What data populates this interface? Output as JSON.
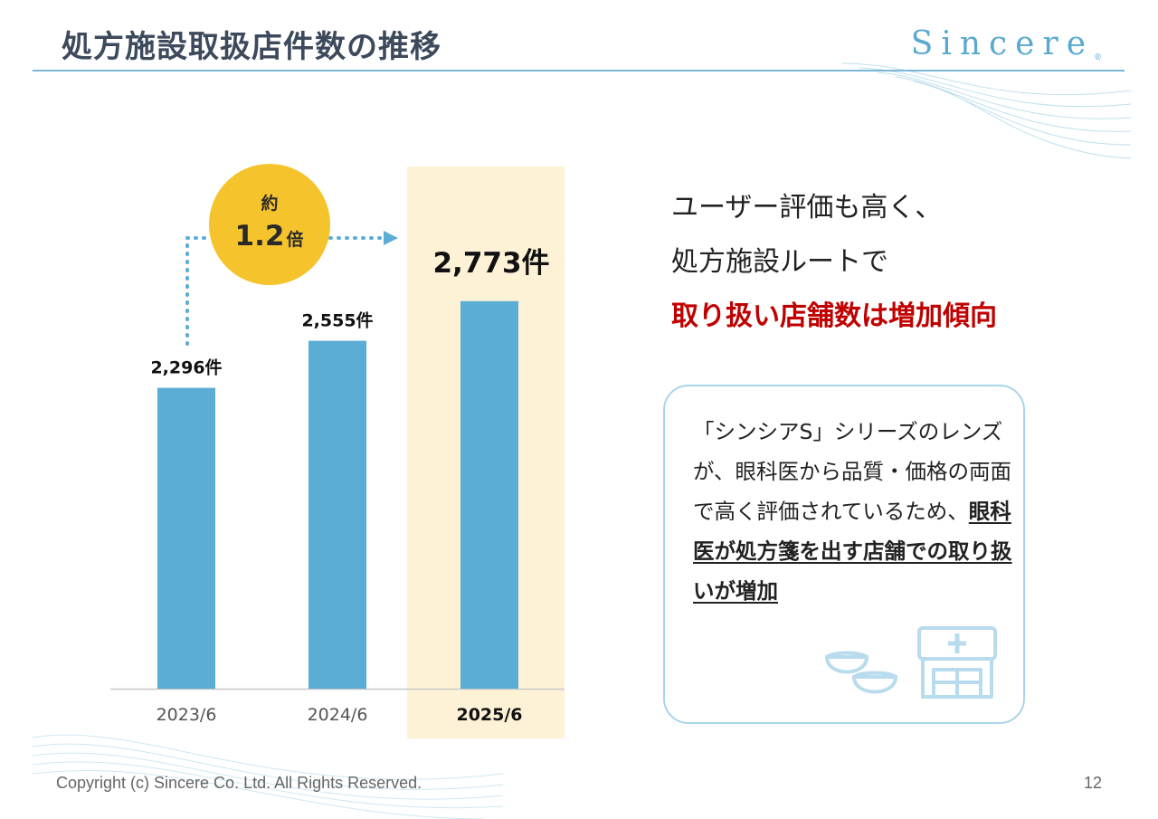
{
  "header": {
    "title": "処方施設取扱店件数の推移",
    "logo_text": "Sincere",
    "logo_mark": "®"
  },
  "chart_data": {
    "type": "bar",
    "categories": [
      "2023/6",
      "2024/6",
      "2025/6"
    ],
    "values": [
      2296,
      2555,
      2773
    ],
    "value_labels": [
      "2,296件",
      "2,555件",
      "2,773件"
    ],
    "highlight_index": 2,
    "growth_badge": {
      "line1": "約",
      "value": "1.2",
      "unit": "倍"
    },
    "colors": {
      "bar": "#5badd6",
      "highlight_bg": "#fdf2d6",
      "badge": "#f5c32c",
      "arrow": "#5badd6"
    }
  },
  "message": {
    "line1": "ユーザー評価も高く、",
    "line2": "処方施設ルートで",
    "line3": "取り扱い店舗数は増加傾向"
  },
  "callout": {
    "text_plain": "「シンシアS」シリーズのレンズが、眼科医から品質・価格の両面で高く評価されているため、",
    "text_strong": "眼科医が処方箋を出す店舗での取り扱いが増加",
    "icons": [
      "contact-lens-icon",
      "store-icon"
    ]
  },
  "footer": {
    "copyright": "Copyright (c) Sincere Co. Ltd. All Rights Reserved.",
    "page_number": "12"
  }
}
